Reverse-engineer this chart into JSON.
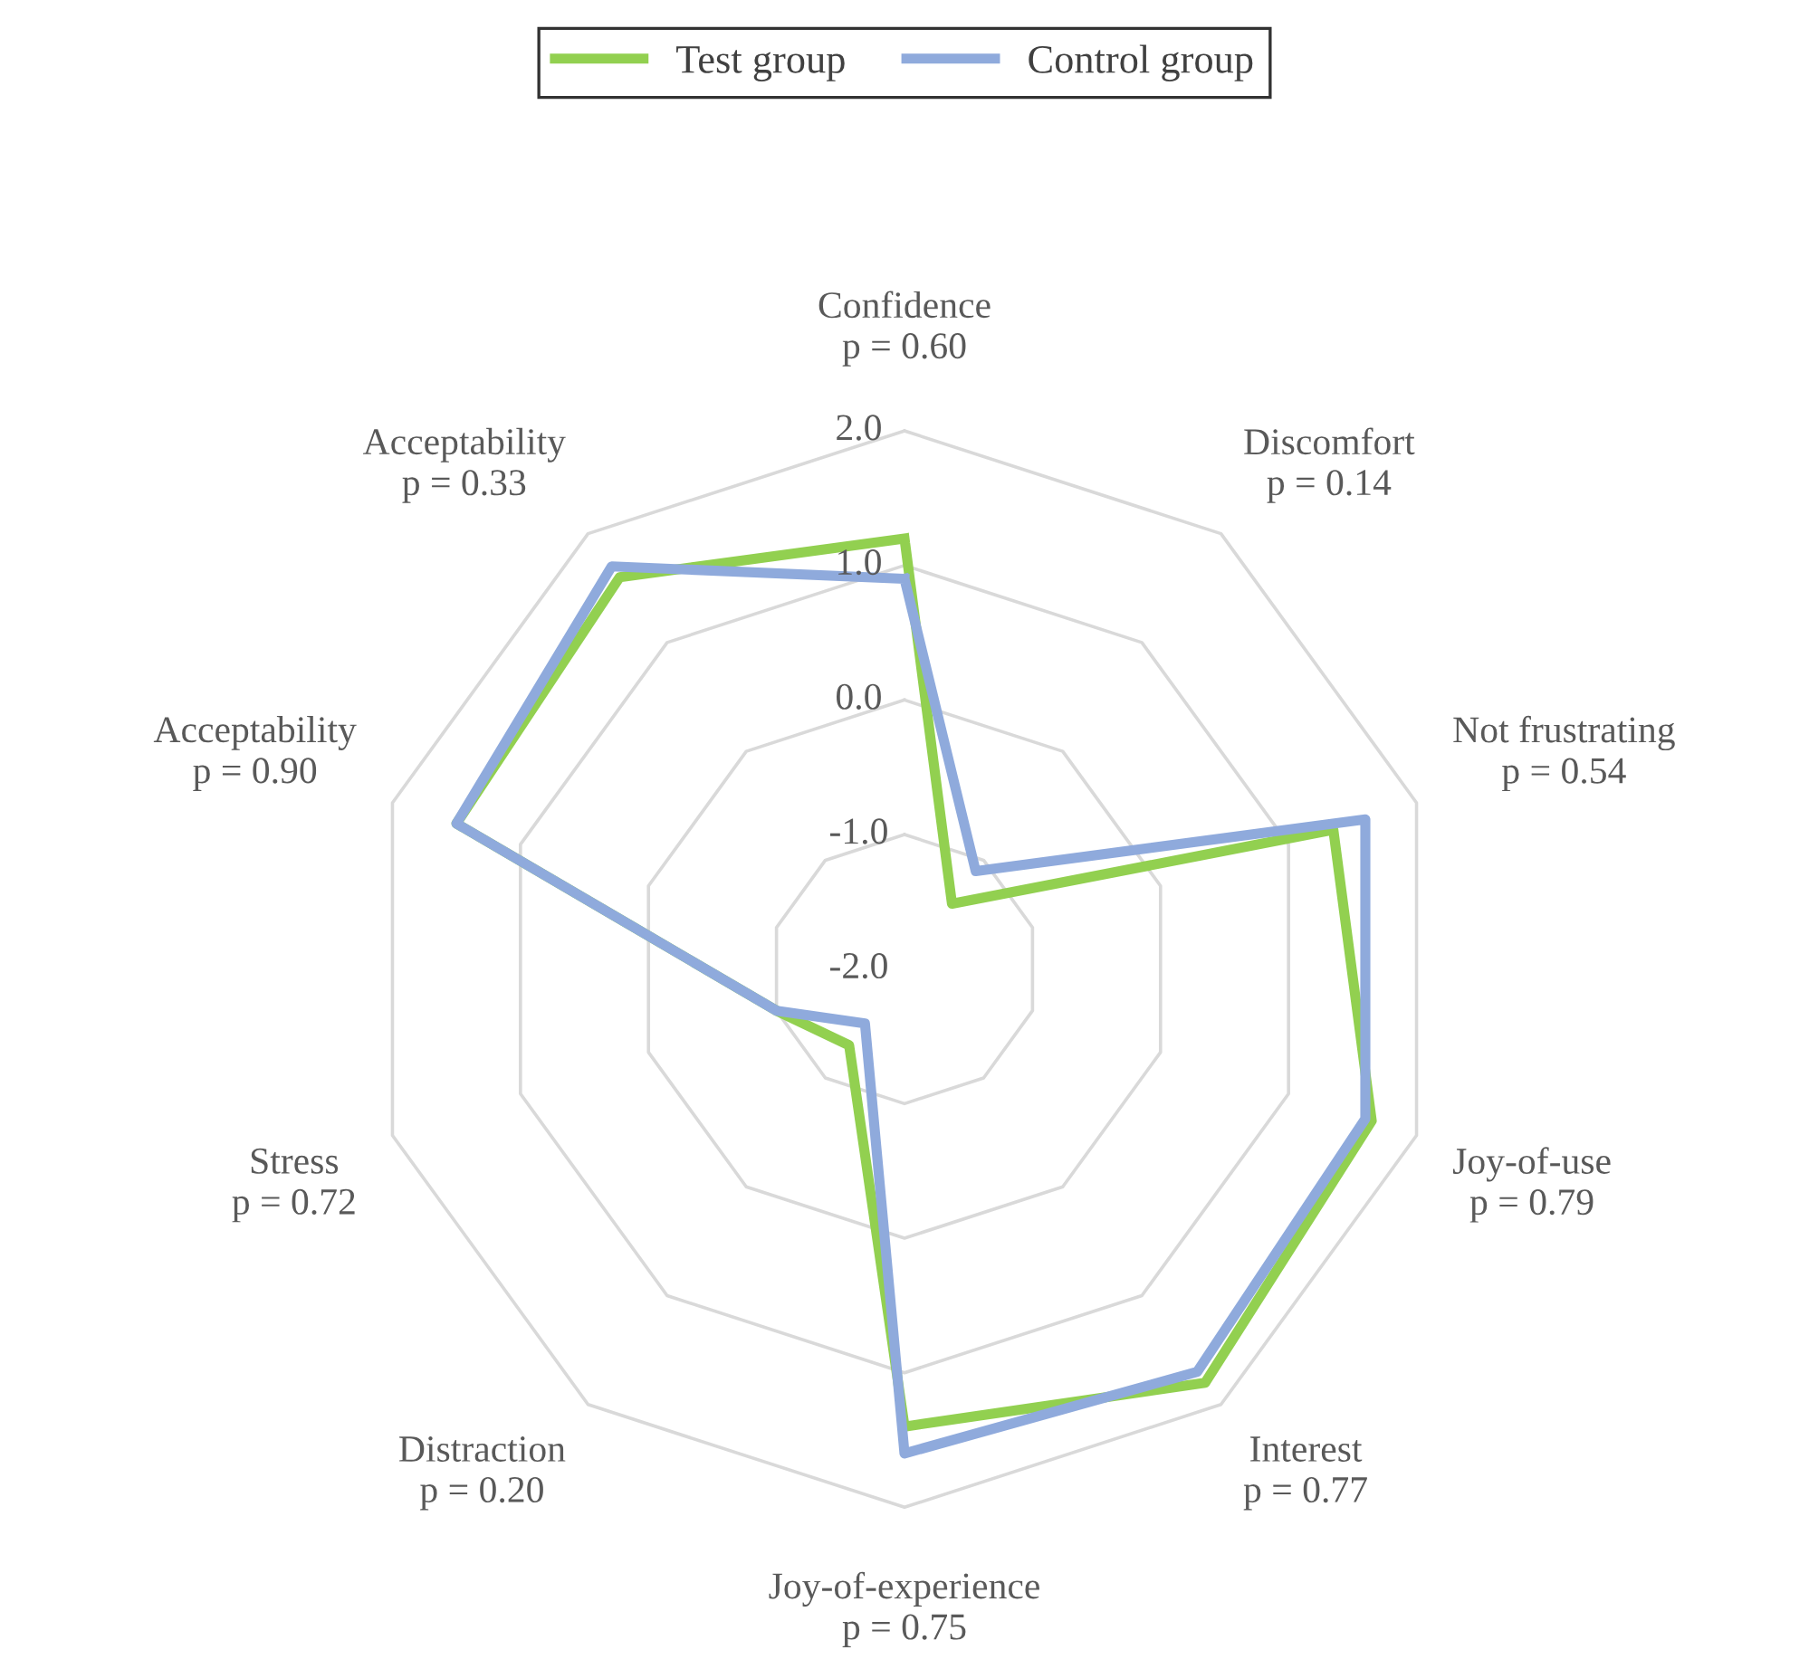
{
  "chart_data": {
    "type": "radar",
    "categories": [
      "Confidence\np = 0.60",
      "Discomfort\np = 0.14",
      "Not frustrating\np = 0.54",
      "Joy-of-use\np = 0.79",
      "Interest\np = 0.77",
      "Joy-of-experience\np = 0.75",
      "Distraction\np = 0.20",
      "Stress\np = 0.72",
      "Acceptability\np = 0.90",
      "Acceptability\np = 0.33"
    ],
    "series": [
      {
        "name": "Test group",
        "color": "#92d050",
        "values": [
          1.2,
          -1.4,
          1.35,
          1.65,
          1.8,
          1.4,
          -1.3,
          -1.0,
          1.5,
          1.6
        ]
      },
      {
        "name": "Control group",
        "color": "#8faadc",
        "values": [
          0.9,
          -1.1,
          1.6,
          1.6,
          1.7,
          1.6,
          -1.5,
          -1.0,
          1.5,
          1.7
        ]
      }
    ],
    "ylim": [
      -2,
      2
    ],
    "yticks": [
      {
        "value": -2,
        "label": "-2.0"
      },
      {
        "value": -1,
        "label": "-1.0"
      },
      {
        "value": 0,
        "label": "0.0"
      },
      {
        "value": 1,
        "label": "1.0"
      },
      {
        "value": 2,
        "label": "2.0"
      }
    ],
    "grid": true,
    "legend": "top"
  }
}
